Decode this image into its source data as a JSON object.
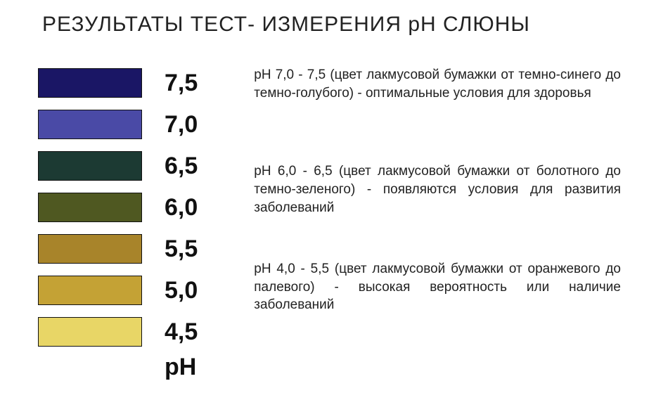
{
  "title": "РЕЗУЛЬТАТЫ ТЕСТ- ИЗМЕРЕНИЯ pH СЛЮНЫ",
  "axis_label": "pH",
  "scale": [
    {
      "value": "7,5",
      "color": "#1a1665"
    },
    {
      "value": "7,0",
      "color": "#4a4aa6"
    },
    {
      "value": "6,5",
      "color": "#1c3a33"
    },
    {
      "value": "6,0",
      "color": "#4f5821"
    },
    {
      "value": "5,5",
      "color": "#a8842a"
    },
    {
      "value": "5,0",
      "color": "#c4a235"
    },
    {
      "value": "4,5",
      "color": "#e8d666"
    }
  ],
  "descriptions": [
    "pH 7,0 - 7,5 (цвет лакмусовой бумажки от темно-синего до темно-голубого) - оптимальные условия для здоровья",
    "pH 6,0 - 6,5 (цвет лакмусовой бумажки от болотного до темно-зеленого) - появляются условия для развития заболеваний",
    "pH 4,0 - 5,5 (цвет лакмусовой бумажки от оранжевого до палевого) - высокая вероятность или наличие заболеваний"
  ],
  "colors": {
    "background": "#ffffff",
    "text": "#222222",
    "value_text": "#111111",
    "swatch_border": "#111111"
  },
  "typography": {
    "title_fontsize": 30,
    "value_fontsize": 34,
    "desc_fontsize": 19
  }
}
